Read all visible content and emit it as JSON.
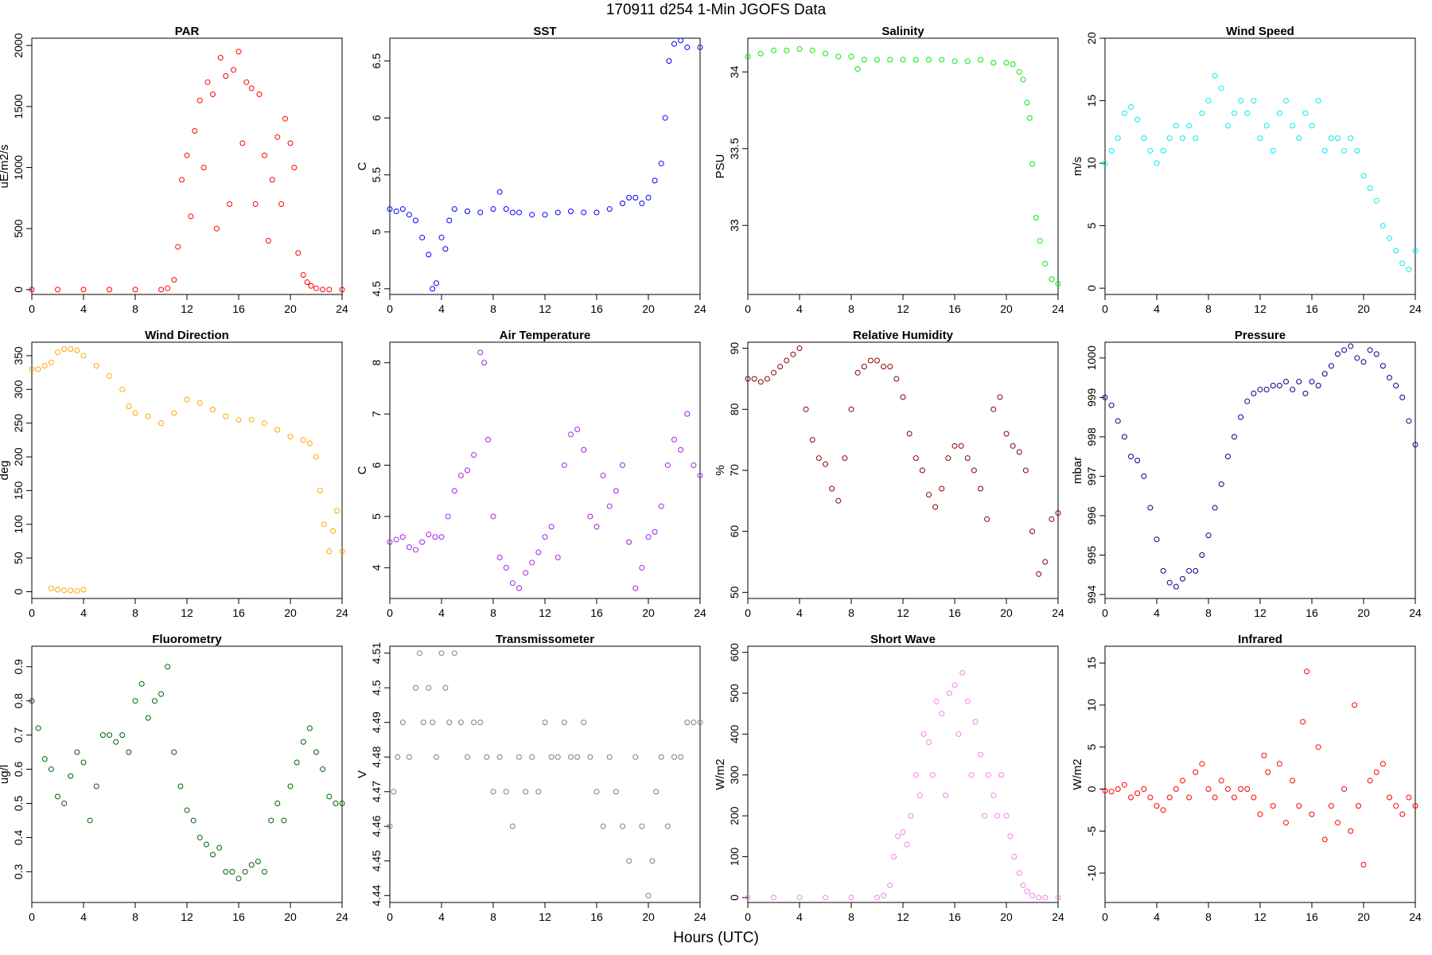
{
  "title": "170911   d254   1-Min  JGOFS Data",
  "xlabel": "Hours (UTC)",
  "chart_data": [
    {
      "type": "scatter",
      "title": "PAR",
      "ylabel": "uE/m2/s",
      "color": "#ff0000",
      "xlim": [
        0,
        24
      ],
      "ylim": [
        -40,
        2060
      ],
      "xticks": [
        0,
        4,
        8,
        12,
        16,
        20,
        24
      ],
      "yticks": [
        0,
        500,
        1000,
        1500,
        2000
      ],
      "x": [
        0,
        2,
        4,
        6,
        8,
        10,
        10.5,
        11,
        11.3,
        11.6,
        12,
        12.3,
        12.6,
        13,
        13.3,
        13.6,
        14,
        14.3,
        14.6,
        15,
        15.3,
        15.6,
        16,
        16.3,
        16.6,
        17,
        17.3,
        17.6,
        18,
        18.3,
        18.6,
        19,
        19.3,
        19.6,
        20,
        20.3,
        20.6,
        21,
        21.3,
        21.6,
        22,
        22.5,
        23,
        24
      ],
      "y": [
        0,
        0,
        0,
        0,
        0,
        0,
        10,
        80,
        350,
        900,
        1100,
        600,
        1300,
        1550,
        1000,
        1700,
        1600,
        500,
        1900,
        1750,
        700,
        1800,
        1950,
        1200,
        1700,
        1650,
        700,
        1600,
        1100,
        400,
        900,
        1250,
        700,
        1400,
        1200,
        1000,
        300,
        120,
        60,
        30,
        10,
        0,
        0,
        0
      ]
    },
    {
      "type": "scatter",
      "title": "SST",
      "ylabel": "C",
      "color": "#0000ff",
      "xlim": [
        0,
        24
      ],
      "ylim": [
        4.45,
        6.7
      ],
      "xticks": [
        0,
        4,
        8,
        12,
        16,
        20,
        24
      ],
      "yticks": [
        4.5,
        5.0,
        5.5,
        6.0,
        6.5
      ],
      "x": [
        0,
        0.5,
        1,
        1.5,
        2,
        2.5,
        3,
        3.3,
        3.6,
        4,
        4.3,
        4.6,
        5,
        6,
        7,
        8,
        8.5,
        9,
        9.5,
        10,
        11,
        12,
        13,
        14,
        15,
        16,
        17,
        18,
        18.5,
        19,
        19.5,
        20,
        20.5,
        21,
        21.3,
        21.6,
        22,
        22.5,
        23,
        24
      ],
      "y": [
        5.2,
        5.18,
        5.2,
        5.15,
        5.1,
        4.95,
        4.8,
        4.5,
        4.55,
        4.95,
        4.85,
        5.1,
        5.2,
        5.18,
        5.17,
        5.2,
        5.35,
        5.2,
        5.17,
        5.17,
        5.15,
        5.15,
        5.17,
        5.18,
        5.17,
        5.17,
        5.2,
        5.25,
        5.3,
        5.3,
        5.25,
        5.3,
        5.45,
        5.6,
        6.0,
        6.5,
        6.65,
        6.68,
        6.62,
        6.62
      ]
    },
    {
      "type": "scatter",
      "title": "Salinity",
      "ylabel": "PSU",
      "color": "#00ee00",
      "xlim": [
        0,
        24
      ],
      "ylim": [
        32.55,
        34.22
      ],
      "xticks": [
        0,
        4,
        8,
        12,
        16,
        20,
        24
      ],
      "yticks": [
        33.0,
        33.5,
        34.0
      ],
      "x": [
        0,
        1,
        2,
        3,
        4,
        5,
        6,
        7,
        8,
        8.5,
        9,
        10,
        11,
        12,
        13,
        14,
        15,
        16,
        17,
        18,
        19,
        20,
        20.5,
        21,
        21.3,
        21.6,
        21.8,
        22,
        22.3,
        22.6,
        23,
        23.5,
        24
      ],
      "y": [
        34.1,
        34.12,
        34.14,
        34.14,
        34.15,
        34.14,
        34.12,
        34.1,
        34.1,
        34.02,
        34.08,
        34.08,
        34.08,
        34.08,
        34.08,
        34.08,
        34.08,
        34.07,
        34.07,
        34.08,
        34.06,
        34.06,
        34.05,
        34.0,
        33.95,
        33.8,
        33.7,
        33.4,
        33.05,
        32.9,
        32.75,
        32.65,
        32.62
      ]
    },
    {
      "type": "scatter",
      "title": "Wind Speed",
      "ylabel": "m/s",
      "color": "#00eeee",
      "xlim": [
        0,
        24
      ],
      "ylim": [
        -0.5,
        20
      ],
      "xticks": [
        0,
        4,
        8,
        12,
        16,
        20,
        24
      ],
      "yticks": [
        0,
        5,
        10,
        15,
        20
      ],
      "x": [
        0,
        0.5,
        1,
        1.5,
        2,
        2.5,
        3,
        3.5,
        4,
        4.5,
        5,
        5.5,
        6,
        6.5,
        7,
        7.5,
        8,
        8.5,
        9,
        9.5,
        10,
        10.5,
        11,
        11.5,
        12,
        12.5,
        13,
        13.5,
        14,
        14.5,
        15,
        15.5,
        16,
        16.5,
        17,
        17.5,
        18,
        18.5,
        19,
        19.5,
        20,
        20.5,
        21,
        21.5,
        22,
        22.5,
        23,
        23.5,
        24
      ],
      "y": [
        10,
        11,
        12,
        14,
        14.5,
        13.5,
        12,
        11,
        10,
        11,
        12,
        13,
        12,
        13,
        12,
        14,
        15,
        17,
        16,
        13,
        14,
        15,
        14,
        15,
        12,
        13,
        11,
        14,
        15,
        13,
        12,
        14,
        13,
        15,
        11,
        12,
        12,
        11,
        12,
        11,
        9,
        8,
        7,
        5,
        4,
        3,
        2,
        1.5,
        3
      ]
    },
    {
      "type": "scatter",
      "title": "Wind Direction",
      "ylabel": "deg",
      "color": "#ffa500",
      "xlim": [
        0,
        24
      ],
      "ylim": [
        -10,
        370
      ],
      "xticks": [
        0,
        4,
        8,
        12,
        16,
        20,
        24
      ],
      "yticks": [
        0,
        50,
        100,
        150,
        200,
        250,
        300,
        350
      ],
      "x": [
        0,
        0.5,
        1,
        1.5,
        2,
        2.5,
        3,
        3.5,
        4,
        5,
        6,
        7,
        7.5,
        8,
        9,
        10,
        11,
        12,
        13,
        14,
        15,
        16,
        17,
        18,
        19,
        20,
        21,
        21.5,
        22,
        22.3,
        22.6,
        23,
        23.3,
        23.6,
        24,
        1.5,
        2,
        2.5,
        3,
        3.5,
        4
      ],
      "y": [
        330,
        330,
        335,
        340,
        355,
        360,
        360,
        358,
        350,
        335,
        320,
        300,
        275,
        265,
        260,
        250,
        265,
        285,
        280,
        270,
        260,
        255,
        255,
        250,
        240,
        230,
        225,
        220,
        200,
        150,
        100,
        60,
        90,
        120,
        60,
        5,
        3,
        2,
        2,
        1,
        3
      ]
    },
    {
      "type": "scatter",
      "title": "Air Temperature",
      "ylabel": "C",
      "color": "#a020f0",
      "xlim": [
        0,
        24
      ],
      "ylim": [
        3.4,
        8.4
      ],
      "xticks": [
        0,
        4,
        8,
        12,
        16,
        20,
        24
      ],
      "yticks": [
        4,
        5,
        6,
        7,
        8
      ],
      "x": [
        0,
        0.5,
        1,
        1.5,
        2,
        2.5,
        3,
        3.5,
        4,
        4.5,
        5,
        5.5,
        6,
        6.5,
        7,
        7.3,
        7.6,
        8,
        8.5,
        9,
        9.5,
        10,
        10.5,
        11,
        11.5,
        12,
        12.5,
        13,
        13.5,
        14,
        14.5,
        15,
        15.5,
        16,
        16.5,
        17,
        17.5,
        18,
        18.5,
        19,
        19.5,
        20,
        20.5,
        21,
        21.5,
        22,
        22.5,
        23,
        23.5,
        24
      ],
      "y": [
        4.5,
        4.55,
        4.6,
        4.4,
        4.35,
        4.5,
        4.65,
        4.6,
        4.6,
        5.0,
        5.5,
        5.8,
        5.9,
        6.2,
        8.2,
        8.0,
        6.5,
        5.0,
        4.2,
        4.0,
        3.7,
        3.6,
        3.9,
        4.1,
        4.3,
        4.6,
        4.8,
        4.2,
        6.0,
        6.6,
        6.7,
        6.3,
        5.0,
        4.8,
        5.8,
        5.2,
        5.5,
        6.0,
        4.5,
        3.6,
        4.0,
        4.6,
        4.7,
        5.2,
        6.0,
        6.5,
        6.3,
        7.0,
        6.0,
        5.8
      ]
    },
    {
      "type": "scatter",
      "title": "Relative Humidity",
      "ylabel": "%",
      "color": "#8b0000",
      "xlim": [
        0,
        24
      ],
      "ylim": [
        49,
        91
      ],
      "xticks": [
        0,
        4,
        8,
        12,
        16,
        20,
        24
      ],
      "yticks": [
        50,
        60,
        70,
        80,
        90
      ],
      "x": [
        0,
        0.5,
        1,
        1.5,
        2,
        2.5,
        3,
        3.5,
        4,
        4.5,
        5,
        5.5,
        6,
        6.5,
        7,
        7.5,
        8,
        8.5,
        9,
        9.5,
        10,
        10.5,
        11,
        11.5,
        12,
        12.5,
        13,
        13.5,
        14,
        14.5,
        15,
        15.5,
        16,
        16.5,
        17,
        17.5,
        18,
        18.5,
        19,
        19.5,
        20,
        20.5,
        21,
        21.5,
        22,
        22.5,
        23,
        23.5,
        24
      ],
      "y": [
        85,
        85,
        84.5,
        85,
        86,
        87,
        88,
        89,
        90,
        80,
        75,
        72,
        71,
        67,
        65,
        72,
        80,
        86,
        87,
        88,
        88,
        87,
        87,
        85,
        82,
        76,
        72,
        70,
        66,
        64,
        67,
        72,
        74,
        74,
        72,
        70,
        67,
        62,
        80,
        82,
        76,
        74,
        73,
        70,
        60,
        53,
        55,
        62,
        63
      ]
    },
    {
      "type": "scatter",
      "title": "Pressure",
      "ylabel": "mbar",
      "color": "#00008b",
      "xlim": [
        0,
        24
      ],
      "ylim": [
        993.9,
        1000.4
      ],
      "xticks": [
        0,
        4,
        8,
        12,
        16,
        20,
        24
      ],
      "yticks": [
        994,
        995,
        996,
        997,
        998,
        999,
        1000
      ],
      "x": [
        0,
        0.5,
        1,
        1.5,
        2,
        2.5,
        3,
        3.5,
        4,
        4.5,
        5,
        5.5,
        6,
        6.5,
        7,
        7.5,
        8,
        8.5,
        9,
        9.5,
        10,
        10.5,
        11,
        11.5,
        12,
        12.5,
        13,
        13.5,
        14,
        14.5,
        15,
        15.5,
        16,
        16.5,
        17,
        17.5,
        18,
        18.5,
        19,
        19.5,
        20,
        20.5,
        21,
        21.5,
        22,
        22.5,
        23,
        23.5,
        24
      ],
      "y": [
        999,
        998.8,
        998.4,
        998,
        997.5,
        997.4,
        997,
        996.2,
        995.4,
        994.6,
        994.3,
        994.2,
        994.4,
        994.6,
        994.6,
        995,
        995.5,
        996.2,
        996.8,
        997.5,
        998,
        998.5,
        998.9,
        999.1,
        999.2,
        999.2,
        999.3,
        999.3,
        999.4,
        999.2,
        999.4,
        999.1,
        999.4,
        999.3,
        999.6,
        999.8,
        1000.1,
        1000.2,
        1000.3,
        1000,
        999.9,
        1000.2,
        1000.1,
        999.8,
        999.5,
        999.3,
        999,
        998.4,
        997.8
      ]
    },
    {
      "type": "scatter",
      "title": "Fluorometry",
      "ylabel": "ug/l",
      "color": "#006400",
      "xlim": [
        0,
        24
      ],
      "ylim": [
        0.21,
        0.96
      ],
      "xticks": [
        0,
        4,
        8,
        12,
        16,
        20,
        24
      ],
      "yticks": [
        0.3,
        0.4,
        0.5,
        0.6,
        0.7,
        0.8,
        0.9
      ],
      "x": [
        0,
        0.5,
        1,
        1.5,
        2,
        2.5,
        3,
        3.5,
        4,
        4.5,
        5,
        5.5,
        6,
        6.5,
        7,
        7.5,
        8,
        8.5,
        9,
        9.5,
        10,
        10.5,
        11,
        11.5,
        12,
        12.5,
        13,
        13.5,
        14,
        14.5,
        15,
        15.5,
        16,
        16.5,
        17,
        17.5,
        18,
        18.5,
        19,
        19.5,
        20,
        20.5,
        21,
        21.5,
        22,
        22.5,
        23,
        23.5,
        24
      ],
      "y": [
        0.8,
        0.72,
        0.63,
        0.6,
        0.52,
        0.5,
        0.58,
        0.65,
        0.62,
        0.45,
        0.55,
        0.7,
        0.7,
        0.68,
        0.7,
        0.65,
        0.8,
        0.85,
        0.75,
        0.8,
        0.82,
        0.9,
        0.65,
        0.55,
        0.48,
        0.45,
        0.4,
        0.38,
        0.35,
        0.37,
        0.3,
        0.3,
        0.28,
        0.3,
        0.32,
        0.33,
        0.3,
        0.45,
        0.5,
        0.45,
        0.55,
        0.62,
        0.68,
        0.72,
        0.65,
        0.6,
        0.52,
        0.5,
        0.5
      ]
    },
    {
      "type": "scatter",
      "title": "Transmissometer",
      "ylabel": "V",
      "color": "#808080",
      "xlim": [
        0,
        24
      ],
      "ylim": [
        4.438,
        4.512
      ],
      "xticks": [
        0,
        4,
        8,
        12,
        16,
        20,
        24
      ],
      "yticks": [
        4.44,
        4.45,
        4.46,
        4.47,
        4.48,
        4.49,
        4.5,
        4.51
      ],
      "x": [
        0,
        0.3,
        0.6,
        1,
        1.5,
        2,
        2.3,
        2.6,
        3,
        3.3,
        3.6,
        4,
        4.3,
        4.6,
        5,
        5.5,
        6,
        6.5,
        7,
        7.5,
        8,
        8.5,
        9,
        9.5,
        10,
        10.5,
        11,
        11.5,
        12,
        12.5,
        13,
        13.5,
        14,
        14.5,
        15,
        15.5,
        16,
        16.5,
        17,
        17.5,
        18,
        18.5,
        19,
        19.5,
        20,
        20.3,
        20.6,
        21,
        21.5,
        22,
        22.5,
        23,
        23.5,
        24
      ],
      "y": [
        4.46,
        4.47,
        4.48,
        4.49,
        4.48,
        4.5,
        4.51,
        4.49,
        4.5,
        4.49,
        4.48,
        4.51,
        4.5,
        4.49,
        4.51,
        4.49,
        4.48,
        4.49,
        4.49,
        4.48,
        4.47,
        4.48,
        4.47,
        4.46,
        4.48,
        4.47,
        4.48,
        4.47,
        4.49,
        4.48,
        4.48,
        4.49,
        4.48,
        4.48,
        4.49,
        4.48,
        4.47,
        4.46,
        4.48,
        4.47,
        4.46,
        4.45,
        4.48,
        4.46,
        4.44,
        4.45,
        4.47,
        4.48,
        4.46,
        4.48,
        4.48,
        4.49,
        4.49,
        4.49
      ]
    },
    {
      "type": "scatter",
      "title": "Short Wave",
      "ylabel": "W/m2",
      "color": "#ee82ee",
      "xlim": [
        0,
        24
      ],
      "ylim": [
        -12,
        615
      ],
      "xticks": [
        0,
        4,
        8,
        12,
        16,
        20,
        24
      ],
      "yticks": [
        0,
        100,
        200,
        300,
        400,
        500,
        600
      ],
      "x": [
        0,
        2,
        4,
        6,
        8,
        10,
        10.5,
        11,
        11.3,
        11.6,
        12,
        12.3,
        12.6,
        13,
        13.3,
        13.6,
        14,
        14.3,
        14.6,
        15,
        15.3,
        15.6,
        16,
        16.3,
        16.6,
        17,
        17.3,
        17.6,
        18,
        18.3,
        18.6,
        19,
        19.3,
        19.6,
        20,
        20.3,
        20.6,
        21,
        21.3,
        21.6,
        22,
        22.5,
        23,
        24
      ],
      "y": [
        0,
        0,
        0,
        0,
        0,
        0,
        5,
        30,
        100,
        150,
        160,
        130,
        200,
        300,
        250,
        400,
        380,
        300,
        480,
        450,
        250,
        500,
        520,
        400,
        550,
        480,
        300,
        430,
        350,
        200,
        300,
        250,
        200,
        300,
        200,
        150,
        100,
        60,
        30,
        15,
        5,
        0,
        0,
        0
      ]
    },
    {
      "type": "scatter",
      "title": "Infrared",
      "ylabel": "W/m2",
      "color": "#ff0000",
      "xlim": [
        0,
        24
      ],
      "ylim": [
        -13.5,
        17
      ],
      "xticks": [
        0,
        4,
        8,
        12,
        16,
        20,
        24
      ],
      "yticks": [
        -10,
        -5,
        0,
        5,
        10,
        15
      ],
      "x": [
        0,
        0.5,
        1,
        1.5,
        2,
        2.5,
        3,
        3.5,
        4,
        4.5,
        5,
        5.5,
        6,
        6.5,
        7,
        7.5,
        8,
        8.5,
        9,
        9.5,
        10,
        10.5,
        11,
        11.5,
        12,
        12.3,
        12.6,
        13,
        13.5,
        14,
        14.5,
        15,
        15.3,
        15.6,
        16,
        16.5,
        17,
        17.5,
        18,
        18.5,
        19,
        19.3,
        19.6,
        20,
        20.5,
        21,
        21.5,
        22,
        22.5,
        23,
        23.5,
        24
      ],
      "y": [
        -0.2,
        -0.3,
        0,
        0.5,
        -1,
        -0.5,
        0,
        -1,
        -2,
        -2.5,
        -1,
        0,
        1,
        -1,
        2,
        3,
        0,
        -1,
        1,
        0,
        -1,
        0,
        0,
        -1,
        -3,
        4,
        2,
        -2,
        3,
        -4,
        1,
        -2,
        8,
        14,
        -3,
        5,
        -6,
        -2,
        -4,
        0,
        -5,
        10,
        -2,
        -9,
        1,
        2,
        3,
        -1,
        -2,
        -3,
        -1,
        -2
      ]
    }
  ]
}
